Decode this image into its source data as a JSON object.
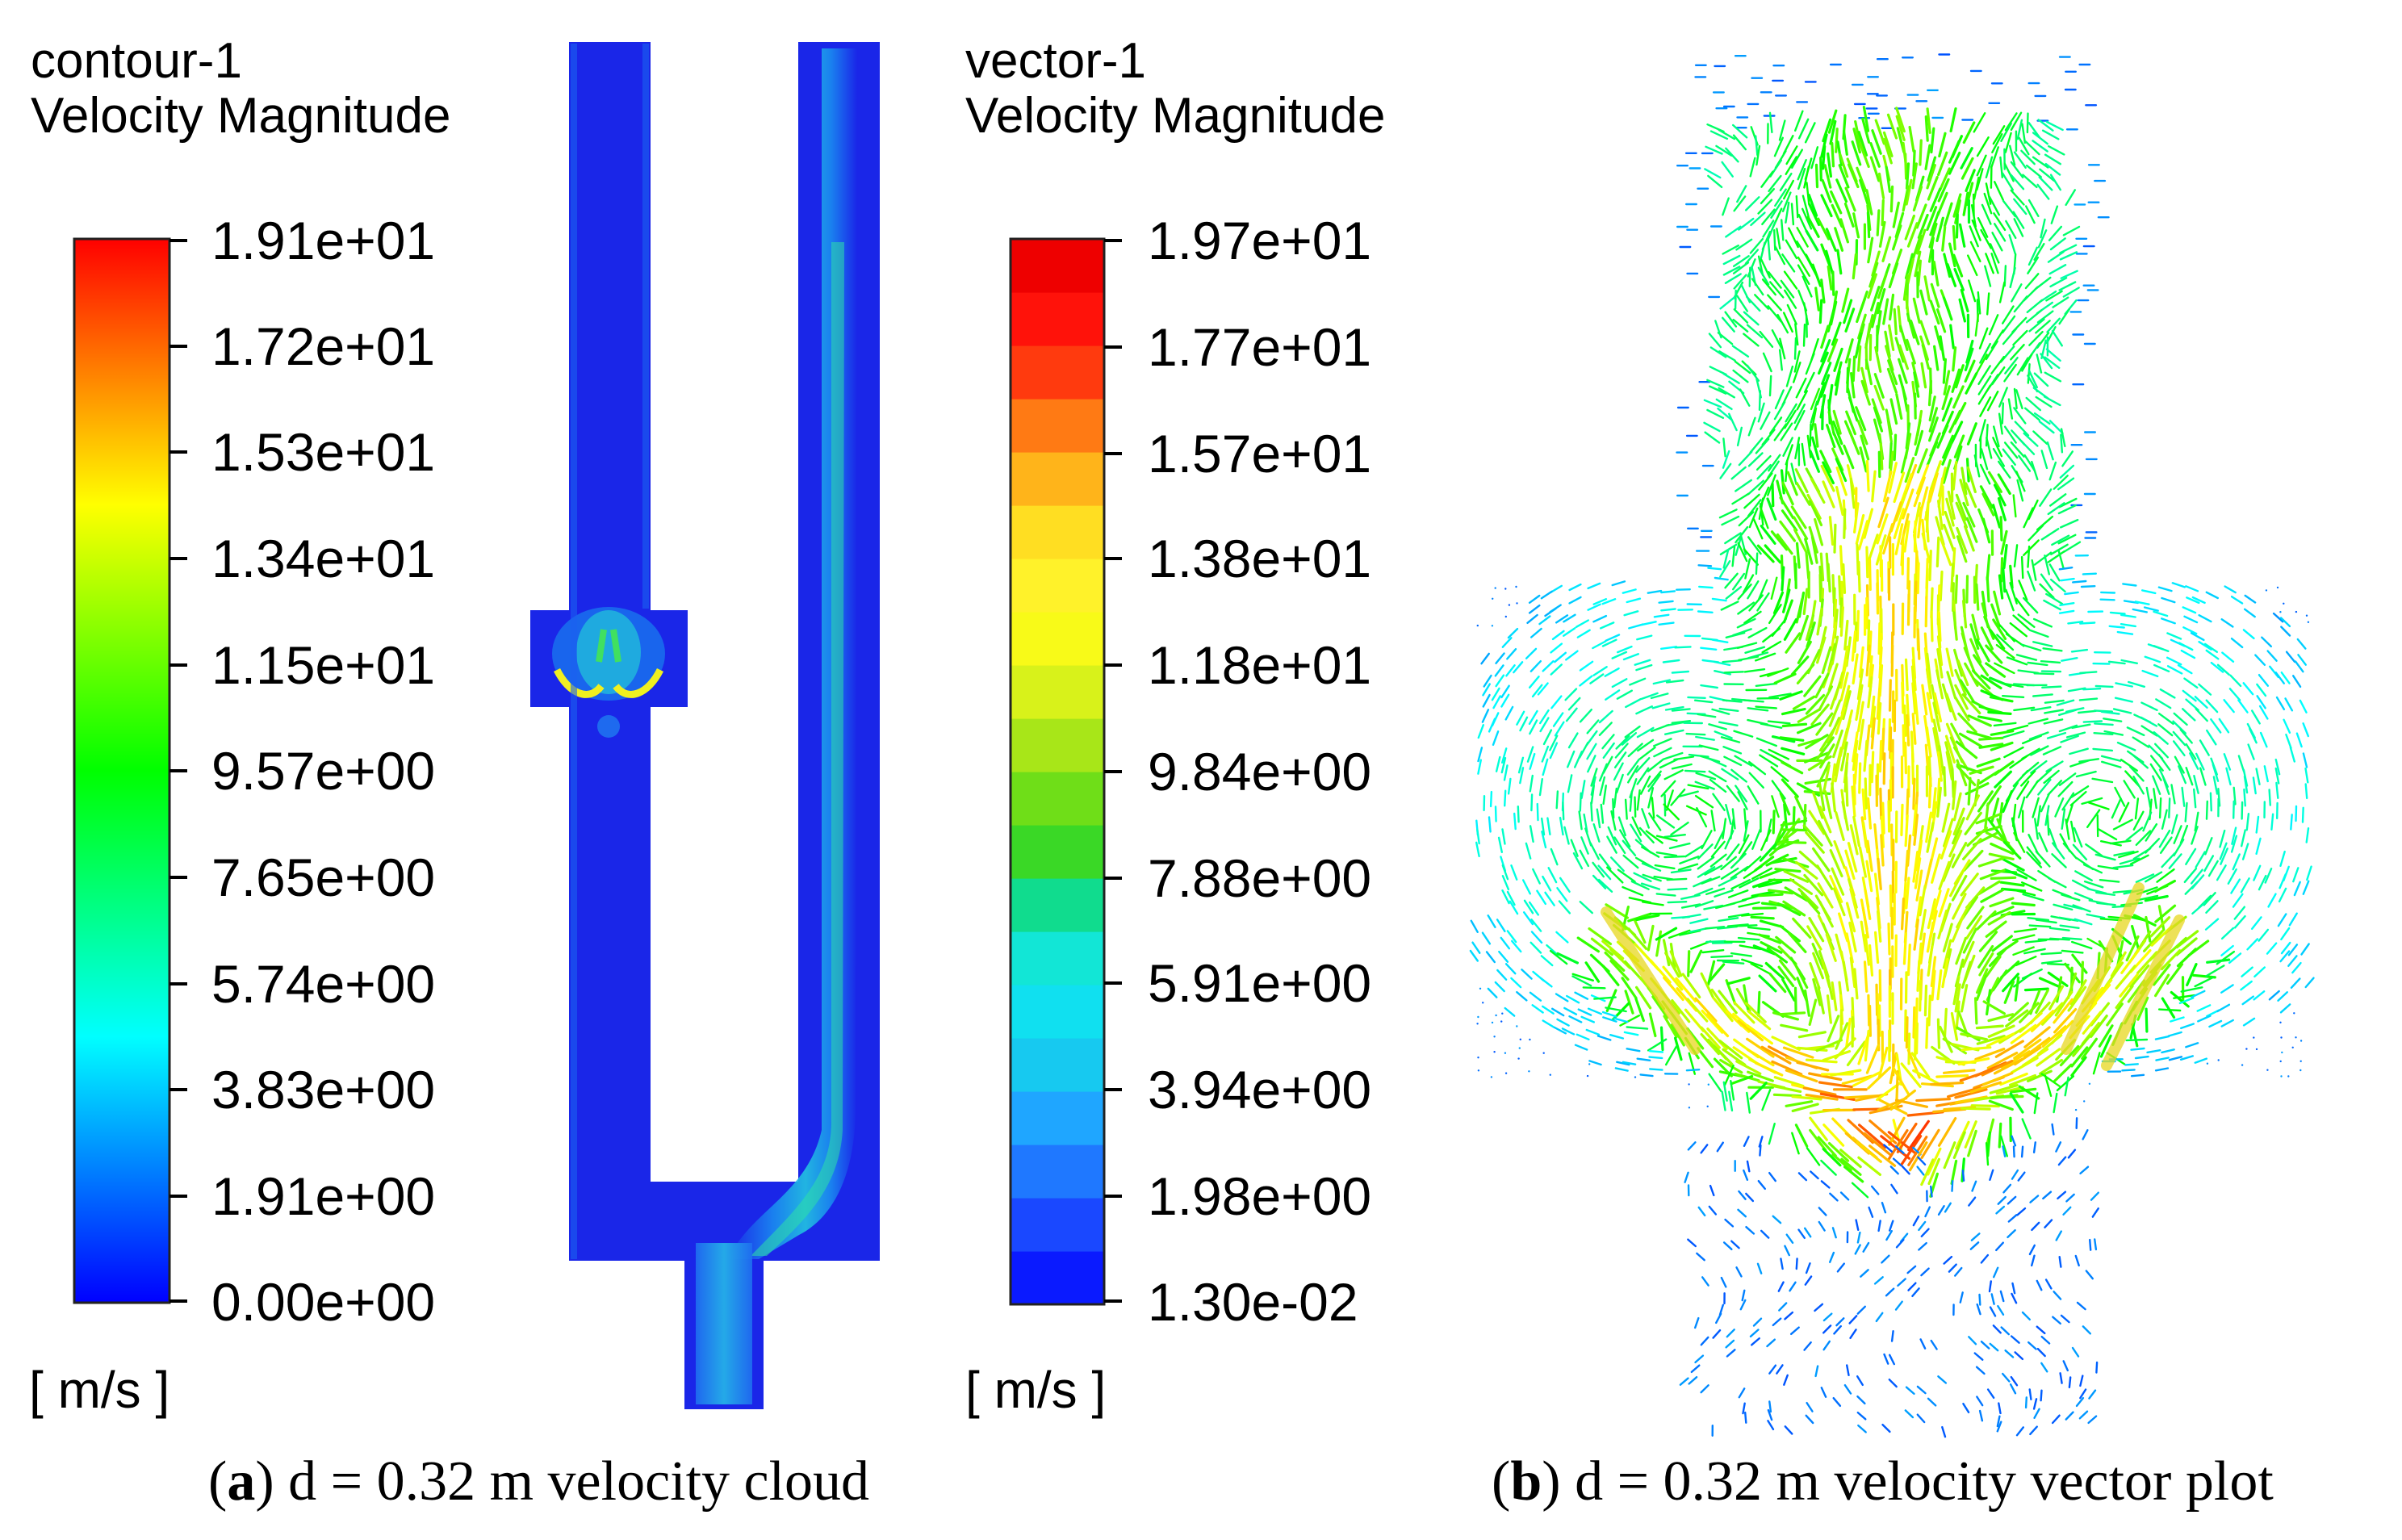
{
  "colors": {
    "background": "#ffffff",
    "domain_low": "#1a26e8",
    "scale_stops": [
      "#0000ff",
      "#0080ff",
      "#00ffff",
      "#00ff80",
      "#00ff00",
      "#80ff00",
      "#ffff00",
      "#ff8000",
      "#ff0000"
    ],
    "vector_bands": [
      "#0a1aff",
      "#1a48ff",
      "#1f78ff",
      "#1fa6ff",
      "#17c9f0",
      "#10e0f0",
      "#12e6d6",
      "#10dc8e",
      "#3ad826",
      "#6fde18",
      "#a8e618",
      "#d8f21a",
      "#f8fa18",
      "#fff22a",
      "#ffde22",
      "#ffb41a",
      "#ff7a14",
      "#ff3a0e",
      "#ff120a",
      "#ee0000"
    ]
  },
  "panel_a": {
    "legend": {
      "line1": "contour-1",
      "line2": "Velocity Magnitude",
      "ticks": [
        "1.91e+01",
        "1.72e+01",
        "1.53e+01",
        "1.34e+01",
        "1.15e+01",
        "9.57e+00",
        "7.65e+00",
        "5.74e+00",
        "3.83e+00",
        "1.91e+00",
        "0.00e+00"
      ],
      "unit": "[ m/s ]"
    },
    "caption": {
      "label": "a",
      "text": "d = 0.32 m velocity cloud"
    }
  },
  "panel_b": {
    "legend": {
      "line1": "vector-1",
      "line2": "Velocity Magnitude",
      "ticks": [
        "1.97e+01",
        "1.77e+01",
        "1.57e+01",
        "1.38e+01",
        "1.18e+01",
        "9.84e+00",
        "7.88e+00",
        "5.91e+00",
        "3.94e+00",
        "1.98e+00",
        "1.30e-02"
      ],
      "unit": "[ m/s ]"
    },
    "caption": {
      "label": "b",
      "text": "d = 0.32 m velocity vector plot"
    }
  }
}
